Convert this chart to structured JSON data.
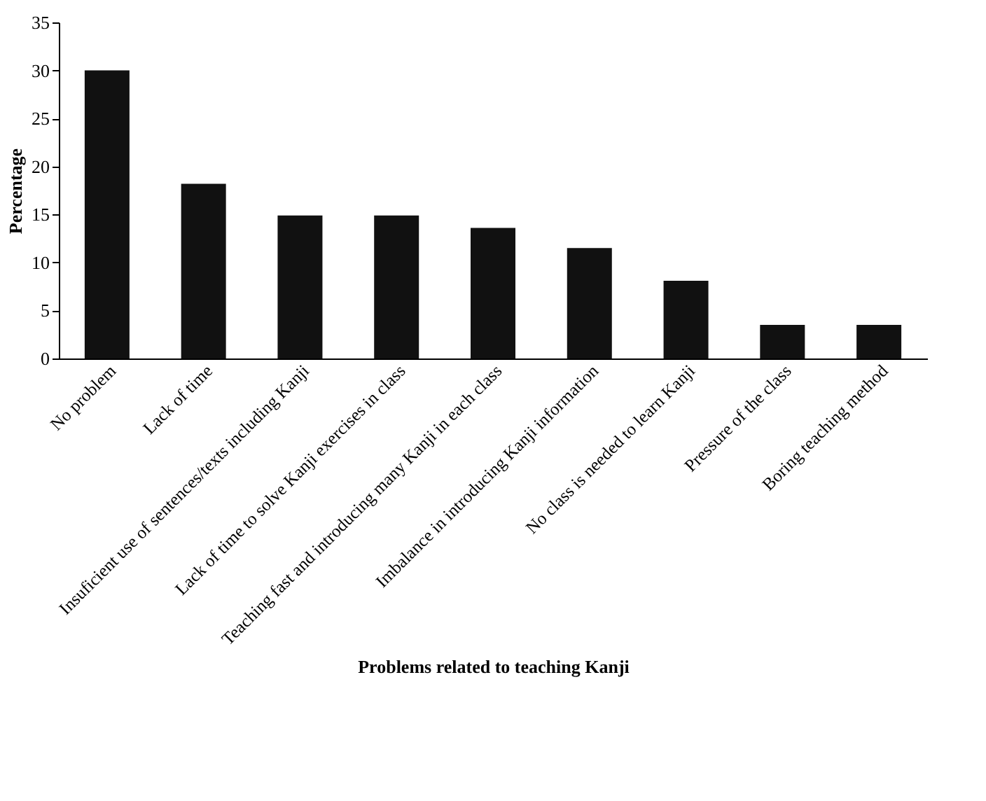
{
  "chart_data": {
    "type": "bar",
    "xlabel": "Problems related to teaching Kanji",
    "ylabel": "Percentage",
    "categories": [
      "No problem",
      "Lack of time",
      "Insuficient use of sentences/texts including Kanji",
      "Lack of time to solve Kanji exercises in class",
      "Teaching fast and introducing many Kanji in each class",
      "Imbalance in introducing Kanji information",
      "No class is needed to learn Kanji",
      "Pressure of the class",
      "Boring teaching method"
    ],
    "values": [
      30,
      18.2,
      14.9,
      14.9,
      13.6,
      11.5,
      8.1,
      3.5,
      3.5
    ],
    "color": "#111111",
    "ylim": [
      0,
      35
    ],
    "yticks": [
      0,
      5,
      10,
      15,
      20,
      25,
      30,
      35
    ],
    "grid": false
  }
}
